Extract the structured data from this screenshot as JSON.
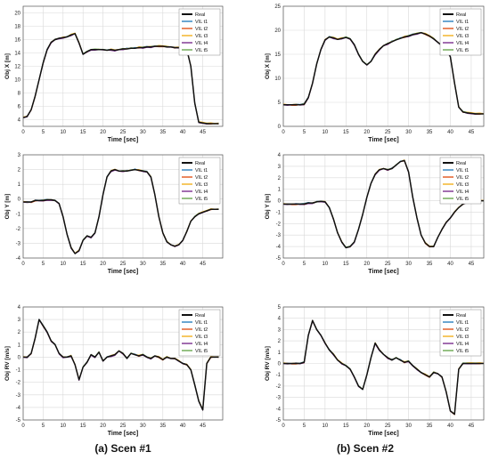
{
  "captions": [
    "(a)  Scen #1",
    "(b)  Scen #2"
  ],
  "legend_entries": [
    "Real",
    "VIL t1",
    "VIL t2",
    "VIL t3",
    "VIL t4",
    "VIL t5"
  ],
  "series_colors": [
    "#111111",
    "#2b7fbf",
    "#e0551c",
    "#f2b01e",
    "#7b2f8f",
    "#6aa84f"
  ],
  "chart_data": [
    {
      "type": "line",
      "xlabel": "Time [sec]",
      "ylabel": "Obj X [m]",
      "xlim": [
        0,
        50
      ],
      "ylim": [
        3,
        21
      ],
      "xticks": [
        0,
        5,
        10,
        15,
        20,
        25,
        30,
        35,
        40,
        45
      ],
      "yticks": [
        4,
        6,
        8,
        10,
        12,
        14,
        16,
        18,
        20
      ],
      "grid": true,
      "legend": "top-right",
      "x": [
        0,
        1,
        2,
        3,
        4,
        5,
        6,
        7,
        8,
        9,
        10,
        11,
        12,
        13,
        14,
        15,
        16,
        17,
        18,
        19,
        20,
        21,
        22,
        23,
        24,
        25,
        26,
        27,
        28,
        29,
        30,
        31,
        32,
        33,
        34,
        35,
        36,
        37,
        38,
        39,
        40,
        41,
        42,
        43,
        44,
        45,
        46,
        47,
        48,
        49
      ],
      "values": [
        4.3,
        4.5,
        5.5,
        7.5,
        10,
        12.5,
        14.5,
        15.6,
        16,
        16.2,
        16.3,
        16.4,
        16.7,
        16.9,
        15.5,
        13.8,
        14.2,
        14.5,
        14.5,
        14.5,
        14.5,
        14.4,
        14.5,
        14.4,
        14.5,
        14.6,
        14.6,
        14.7,
        14.7,
        14.8,
        14.8,
        14.9,
        14.9,
        15,
        15,
        15,
        14.9,
        14.9,
        14.8,
        14.8,
        14.7,
        14.5,
        12,
        6.5,
        3.6,
        3.5,
        3.4,
        3.4,
        3.4,
        3.4
      ]
    },
    {
      "type": "line",
      "xlabel": "Time [sec]",
      "ylabel": "Obj X [m]",
      "xlim": [
        0,
        48
      ],
      "ylim": [
        0,
        25
      ],
      "xticks": [
        0,
        5,
        10,
        15,
        20,
        25,
        30,
        35,
        40,
        45
      ],
      "yticks": [
        0,
        5,
        10,
        15,
        20,
        25
      ],
      "grid": true,
      "legend": "top-right",
      "x": [
        0,
        1,
        2,
        3,
        4,
        5,
        6,
        7,
        8,
        9,
        10,
        11,
        12,
        13,
        14,
        15,
        16,
        17,
        18,
        19,
        20,
        21,
        22,
        23,
        24,
        25,
        26,
        27,
        28,
        29,
        30,
        31,
        32,
        33,
        34,
        35,
        36,
        37,
        38,
        39,
        40,
        41,
        42,
        43,
        44,
        45,
        46,
        47,
        48
      ],
      "values": [
        4.5,
        4.5,
        4.5,
        4.5,
        4.5,
        4.6,
        6,
        9,
        13,
        16,
        18,
        18.6,
        18.4,
        18.1,
        18.3,
        18.5,
        18.2,
        17,
        15,
        13.5,
        12.8,
        13.5,
        15,
        16,
        16.8,
        17.2,
        17.6,
        18,
        18.3,
        18.6,
        18.8,
        19.1,
        19.3,
        19.5,
        19.2,
        18.8,
        18.2,
        17.5,
        16.8,
        16,
        14.5,
        9,
        4,
        3,
        2.8,
        2.7,
        2.6,
        2.6,
        2.6
      ]
    },
    {
      "type": "line",
      "xlabel": "Time [sec]",
      "ylabel": "Obj Y [m]",
      "xlim": [
        0,
        50
      ],
      "ylim": [
        -4,
        3
      ],
      "xticks": [
        0,
        5,
        10,
        15,
        20,
        25,
        30,
        35,
        40,
        45
      ],
      "yticks": [
        -4,
        -3,
        -2,
        -1,
        0,
        1,
        2,
        3
      ],
      "grid": true,
      "legend": "top-right",
      "x": [
        0,
        1,
        2,
        3,
        4,
        5,
        6,
        7,
        8,
        9,
        10,
        11,
        12,
        13,
        14,
        15,
        16,
        17,
        18,
        19,
        20,
        21,
        22,
        23,
        24,
        25,
        26,
        27,
        28,
        29,
        30,
        31,
        32,
        33,
        34,
        35,
        36,
        37,
        38,
        39,
        40,
        41,
        42,
        43,
        44,
        45,
        46,
        47,
        48,
        49
      ],
      "values": [
        -0.2,
        -0.2,
        -0.2,
        -0.1,
        -0.1,
        -0.1,
        -0.05,
        -0.05,
        -0.1,
        -0.3,
        -1.2,
        -2.4,
        -3.3,
        -3.7,
        -3.5,
        -2.8,
        -2.5,
        -2.6,
        -2.3,
        -1.2,
        0.3,
        1.5,
        1.9,
        2,
        1.9,
        1.9,
        1.9,
        1.95,
        2,
        1.95,
        1.9,
        1.85,
        1.5,
        0.3,
        -1.2,
        -2.3,
        -2.9,
        -3.1,
        -3.2,
        -3.1,
        -2.8,
        -2.2,
        -1.5,
        -1.2,
        -1,
        -0.9,
        -0.8,
        -0.7,
        -0.7,
        -0.7
      ]
    },
    {
      "type": "line",
      "xlabel": "Time [sec]",
      "ylabel": "Obj Y [m]",
      "xlim": [
        0,
        48
      ],
      "ylim": [
        -5,
        4
      ],
      "xticks": [
        0,
        5,
        10,
        15,
        20,
        25,
        30,
        35,
        40,
        45
      ],
      "yticks": [
        -5,
        -4,
        -3,
        -2,
        -1,
        0,
        1,
        2,
        3,
        4
      ],
      "grid": true,
      "legend": "top-right",
      "x": [
        0,
        1,
        2,
        3,
        4,
        5,
        6,
        7,
        8,
        9,
        10,
        11,
        12,
        13,
        14,
        15,
        16,
        17,
        18,
        19,
        20,
        21,
        22,
        23,
        24,
        25,
        26,
        27,
        28,
        29,
        30,
        31,
        32,
        33,
        34,
        35,
        36,
        37,
        38,
        39,
        40,
        41,
        42,
        43,
        44,
        45,
        46,
        47,
        48
      ],
      "values": [
        -0.3,
        -0.3,
        -0.3,
        -0.3,
        -0.3,
        -0.3,
        -0.2,
        -0.2,
        -0.1,
        -0.05,
        -0.1,
        -0.6,
        -1.6,
        -2.8,
        -3.6,
        -4.1,
        -4,
        -3.6,
        -2.5,
        -1.2,
        0.3,
        1.5,
        2.3,
        2.7,
        2.8,
        2.7,
        2.8,
        3.1,
        3.4,
        3.5,
        2.5,
        0.3,
        -1.5,
        -3,
        -3.7,
        -4,
        -4,
        -3.2,
        -2.5,
        -1.9,
        -1.5,
        -1,
        -0.6,
        -0.3,
        -0.15,
        -0.1,
        -0.05,
        0,
        0
      ]
    },
    {
      "type": "line",
      "xlabel": "Time [sec]",
      "ylabel": "Obj RV [m/s]",
      "xlim": [
        0,
        50
      ],
      "ylim": [
        -5,
        4
      ],
      "xticks": [
        0,
        5,
        10,
        15,
        20,
        25,
        30,
        35,
        40,
        45
      ],
      "yticks": [
        -5,
        -4,
        -3,
        -2,
        -1,
        0,
        1,
        2,
        3,
        4
      ],
      "grid": true,
      "legend": "top-right",
      "x": [
        0,
        1,
        2,
        3,
        4,
        5,
        6,
        7,
        8,
        9,
        10,
        11,
        12,
        13,
        14,
        15,
        16,
        17,
        18,
        19,
        20,
        21,
        22,
        23,
        24,
        25,
        26,
        27,
        28,
        29,
        30,
        31,
        32,
        33,
        34,
        35,
        36,
        37,
        38,
        39,
        40,
        41,
        42,
        43,
        44,
        45,
        46,
        47,
        48,
        49
      ],
      "values": [
        0,
        0,
        0.3,
        1.5,
        3,
        2.5,
        2,
        1.3,
        1,
        0.3,
        0,
        0,
        0.1,
        -0.6,
        -1.8,
        -0.8,
        -0.4,
        0.2,
        0,
        0.4,
        -0.3,
        0,
        0.1,
        0.2,
        0.5,
        0.3,
        -0.1,
        0.3,
        0.2,
        0.1,
        0.2,
        0,
        -0.1,
        0.1,
        0,
        -0.2,
        0,
        -0.1,
        -0.1,
        -0.3,
        -0.5,
        -0.6,
        -1,
        -2.2,
        -3.5,
        -4.2,
        -0.5,
        0,
        0,
        0
      ]
    },
    {
      "type": "line",
      "xlabel": "Time [sec]",
      "ylabel": "Obj RV [m/s]",
      "xlim": [
        0,
        48
      ],
      "ylim": [
        -5,
        5
      ],
      "xticks": [
        0,
        5,
        10,
        15,
        20,
        25,
        30,
        35,
        40,
        45
      ],
      "yticks": [
        -5,
        -4,
        -3,
        -2,
        -1,
        0,
        1,
        2,
        3,
        4,
        5
      ],
      "grid": true,
      "legend": "top-right",
      "x": [
        0,
        1,
        2,
        3,
        4,
        5,
        6,
        7,
        8,
        9,
        10,
        11,
        12,
        13,
        14,
        15,
        16,
        17,
        18,
        19,
        20,
        21,
        22,
        23,
        24,
        25,
        26,
        27,
        28,
        29,
        30,
        31,
        32,
        33,
        34,
        35,
        36,
        37,
        38,
        39,
        40,
        41,
        42,
        43,
        44,
        45,
        46,
        47,
        48
      ],
      "values": [
        0,
        0,
        0,
        0,
        0,
        0.1,
        2.5,
        3.8,
        3,
        2.5,
        1.8,
        1.2,
        0.8,
        0.3,
        0,
        -0.2,
        -0.5,
        -1.2,
        -2,
        -2.3,
        -1,
        0.5,
        1.8,
        1.2,
        0.8,
        0.5,
        0.3,
        0.5,
        0.3,
        0.1,
        0.2,
        -0.2,
        -0.5,
        -0.8,
        -1,
        -1.2,
        -0.8,
        -0.9,
        -1.2,
        -2.5,
        -4.2,
        -4.5,
        -0.5,
        0,
        0,
        0,
        0,
        0,
        0
      ]
    }
  ]
}
